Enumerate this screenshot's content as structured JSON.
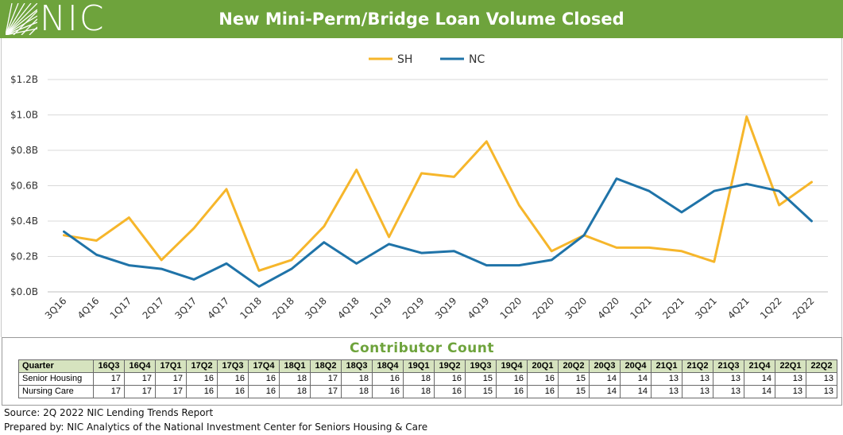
{
  "brand": {
    "logo_text": "NIC",
    "header_color": "#6ea33c"
  },
  "title": "New Mini-Perm/Bridge Loan Volume Closed",
  "chart_data": {
    "type": "line",
    "title": "New Mini-Perm/Bridge Loan Volume Closed",
    "categories": [
      "3Q16",
      "4Q16",
      "1Q17",
      "2Q17",
      "3Q17",
      "4Q17",
      "1Q18",
      "2Q18",
      "3Q18",
      "4Q18",
      "1Q19",
      "2Q19",
      "3Q19",
      "4Q19",
      "1Q20",
      "2Q20",
      "3Q20",
      "4Q20",
      "1Q21",
      "2Q21",
      "3Q21",
      "4Q21",
      "1Q22",
      "2Q22"
    ],
    "y_unit": "billions of dollars",
    "ylim": [
      0,
      1.2
    ],
    "y_ticks": [
      0,
      0.2,
      0.4,
      0.6,
      0.8,
      1.0,
      1.2
    ],
    "y_tick_labels": [
      "$0.0B",
      "$0.2B",
      "$0.4B",
      "$0.6B",
      "$0.8B",
      "$1.0B",
      "$1.2B"
    ],
    "grid": "horizontal",
    "legend_position": "top-center",
    "xlabel": "",
    "ylabel": "",
    "series": [
      {
        "name": "SH",
        "color": "#f6b62b",
        "values": [
          0.32,
          0.29,
          0.42,
          0.18,
          0.36,
          0.58,
          0.12,
          0.18,
          0.37,
          0.69,
          0.31,
          0.67,
          0.65,
          0.85,
          0.49,
          0.23,
          0.32,
          0.25,
          0.25,
          0.23,
          0.17,
          0.99,
          0.49,
          0.62
        ]
      },
      {
        "name": "NC",
        "color": "#1f73a8",
        "values": [
          0.34,
          0.21,
          0.15,
          0.13,
          0.07,
          0.16,
          0.03,
          0.13,
          0.28,
          0.16,
          0.27,
          0.22,
          0.23,
          0.15,
          0.15,
          0.18,
          0.32,
          0.64,
          0.57,
          0.45,
          0.57,
          0.61,
          0.57,
          0.4
        ]
      }
    ]
  },
  "contributor_count": {
    "title": "Contributor Count",
    "header_label": "Quarter",
    "quarters": [
      "16Q3",
      "16Q4",
      "17Q1",
      "17Q2",
      "17Q3",
      "17Q4",
      "18Q1",
      "18Q2",
      "18Q3",
      "18Q4",
      "19Q1",
      "19Q2",
      "19Q3",
      "19Q4",
      "20Q1",
      "20Q2",
      "20Q3",
      "20Q4",
      "21Q1",
      "21Q2",
      "21Q3",
      "21Q4",
      "22Q1",
      "22Q2"
    ],
    "rows": [
      {
        "label": "Senior Housing",
        "values": [
          "17",
          "17",
          "17",
          "16",
          "16",
          "16",
          "18",
          "17",
          "18",
          "16",
          "18",
          "16",
          "15",
          "16",
          "16",
          "15",
          "14",
          "14",
          "13",
          "13",
          "13",
          "14",
          "13",
          "13"
        ]
      },
      {
        "label": "Nursing Care",
        "values": [
          "17",
          "17",
          "17",
          "16",
          "16",
          "16",
          "18",
          "17",
          "18",
          "16",
          "18",
          "16",
          "15",
          "16",
          "16",
          "15",
          "14",
          "14",
          "13",
          "13",
          "13",
          "14",
          "13",
          "13"
        ]
      }
    ]
  },
  "footer": {
    "source": "Source: 2Q 2022 NIC Lending Trends Report",
    "prepared_by": "Prepared by: NIC Analytics of the National Investment Center for Seniors Housing & Care"
  }
}
